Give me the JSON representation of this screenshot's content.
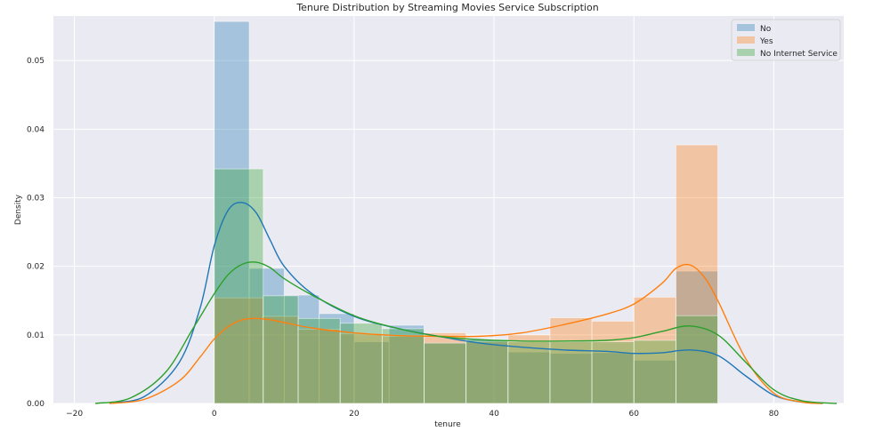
{
  "chart_data": {
    "type": "histogram",
    "title": "Tenure Distribution by Streaming Movies Service Subscription",
    "xlabel": "tenure",
    "ylabel": "Density",
    "xlim": [
      -23,
      90
    ],
    "ylim": [
      0,
      0.0565
    ],
    "xticks": [
      -20,
      0,
      20,
      40,
      60,
      80
    ],
    "yticks": [
      0.0,
      0.01,
      0.02,
      0.03,
      0.04,
      0.05
    ],
    "ytick_labels": [
      "0.00",
      "0.01",
      "0.02",
      "0.03",
      "0.04",
      "0.05"
    ],
    "grid": true,
    "legend_position": "top-right",
    "series": [
      {
        "name": "No",
        "color": "#1f77b4",
        "bins": [
          {
            "x0": 0,
            "x1": 5,
            "density": 0.0557
          },
          {
            "x0": 5,
            "x1": 10,
            "density": 0.0197
          },
          {
            "x0": 10,
            "x1": 15,
            "density": 0.0158
          },
          {
            "x0": 15,
            "x1": 20,
            "density": 0.0131
          },
          {
            "x0": 20,
            "x1": 25,
            "density": 0.009
          },
          {
            "x0": 25,
            "x1": 30,
            "density": 0.0114
          },
          {
            "x0": 30,
            "x1": 36,
            "density": 0.0089
          },
          {
            "x0": 36,
            "x1": 42,
            "density": 0.0093
          },
          {
            "x0": 42,
            "x1": 48,
            "density": 0.0075
          },
          {
            "x0": 48,
            "x1": 54,
            "density": 0.0073
          },
          {
            "x0": 54,
            "x1": 60,
            "density": 0.0074
          },
          {
            "x0": 60,
            "x1": 66,
            "density": 0.0063
          },
          {
            "x0": 66,
            "x1": 72,
            "density": 0.0193
          }
        ],
        "kde": {
          "x": [
            -15,
            -10,
            -5,
            -2,
            0,
            2,
            4,
            6,
            8,
            10,
            14,
            20,
            26,
            32,
            38,
            44,
            50,
            56,
            60,
            64,
            68,
            72,
            76,
            80,
            84,
            87
          ],
          "y": [
            0.0001,
            0.001,
            0.006,
            0.014,
            0.023,
            0.0282,
            0.0293,
            0.0278,
            0.0238,
            0.02,
            0.016,
            0.0127,
            0.011,
            0.0098,
            0.0088,
            0.0082,
            0.0078,
            0.0076,
            0.0073,
            0.0074,
            0.0078,
            0.007,
            0.004,
            0.0012,
            0.0002,
            0.0
          ]
        }
      },
      {
        "name": "Yes",
        "color": "#ff7f0e",
        "bins": [
          {
            "x0": 0,
            "x1": 7,
            "density": 0.0154
          },
          {
            "x0": 7,
            "x1": 12,
            "density": 0.0127
          },
          {
            "x0": 12,
            "x1": 18,
            "density": 0.0108
          },
          {
            "x0": 18,
            "x1": 24,
            "density": 0.0102
          },
          {
            "x0": 24,
            "x1": 30,
            "density": 0.0098
          },
          {
            "x0": 30,
            "x1": 36,
            "density": 0.0103
          },
          {
            "x0": 36,
            "x1": 42,
            "density": 0.009
          },
          {
            "x0": 42,
            "x1": 48,
            "density": 0.01
          },
          {
            "x0": 48,
            "x1": 54,
            "density": 0.0125
          },
          {
            "x0": 54,
            "x1": 60,
            "density": 0.012
          },
          {
            "x0": 60,
            "x1": 66,
            "density": 0.0155
          },
          {
            "x0": 66,
            "x1": 72,
            "density": 0.0377
          }
        ],
        "kde": {
          "x": [
            -15,
            -10,
            -5,
            -2,
            0,
            2,
            4,
            6,
            8,
            10,
            14,
            20,
            26,
            32,
            38,
            44,
            50,
            56,
            60,
            64,
            66,
            68,
            70,
            72,
            76,
            80,
            84,
            87
          ],
          "y": [
            0.0,
            0.0006,
            0.0033,
            0.0068,
            0.0094,
            0.0112,
            0.0122,
            0.0124,
            0.0122,
            0.0118,
            0.011,
            0.0103,
            0.0099,
            0.0098,
            0.0098,
            0.0103,
            0.0115,
            0.013,
            0.0145,
            0.0175,
            0.0197,
            0.0202,
            0.0185,
            0.015,
            0.0065,
            0.0015,
            0.0002,
            0.0
          ]
        }
      },
      {
        "name": "No Internet Service",
        "color": "#2ca02c",
        "bins": [
          {
            "x0": 0,
            "x1": 7,
            "density": 0.0342
          },
          {
            "x0": 7,
            "x1": 12,
            "density": 0.0157
          },
          {
            "x0": 12,
            "x1": 18,
            "density": 0.0124
          },
          {
            "x0": 18,
            "x1": 24,
            "density": 0.0117
          },
          {
            "x0": 24,
            "x1": 30,
            "density": 0.0109
          },
          {
            "x0": 30,
            "x1": 36,
            "density": 0.0088
          },
          {
            "x0": 36,
            "x1": 42,
            "density": 0.0093
          },
          {
            "x0": 42,
            "x1": 48,
            "density": 0.009
          },
          {
            "x0": 48,
            "x1": 54,
            "density": 0.009
          },
          {
            "x0": 54,
            "x1": 60,
            "density": 0.009
          },
          {
            "x0": 60,
            "x1": 66,
            "density": 0.0092
          },
          {
            "x0": 66,
            "x1": 72,
            "density": 0.0128
          }
        ],
        "kde": {
          "x": [
            -17,
            -12,
            -7,
            -3,
            0,
            2,
            4,
            6,
            8,
            10,
            14,
            20,
            26,
            32,
            38,
            44,
            50,
            56,
            60,
            64,
            68,
            72,
            76,
            80,
            84,
            89
          ],
          "y": [
            0.0,
            0.0008,
            0.0045,
            0.011,
            0.016,
            0.0188,
            0.0203,
            0.0206,
            0.0198,
            0.0182,
            0.0158,
            0.0128,
            0.011,
            0.0098,
            0.0093,
            0.0091,
            0.0091,
            0.0092,
            0.0096,
            0.0105,
            0.0113,
            0.01,
            0.006,
            0.002,
            0.0004,
            0.0
          ]
        }
      }
    ]
  }
}
